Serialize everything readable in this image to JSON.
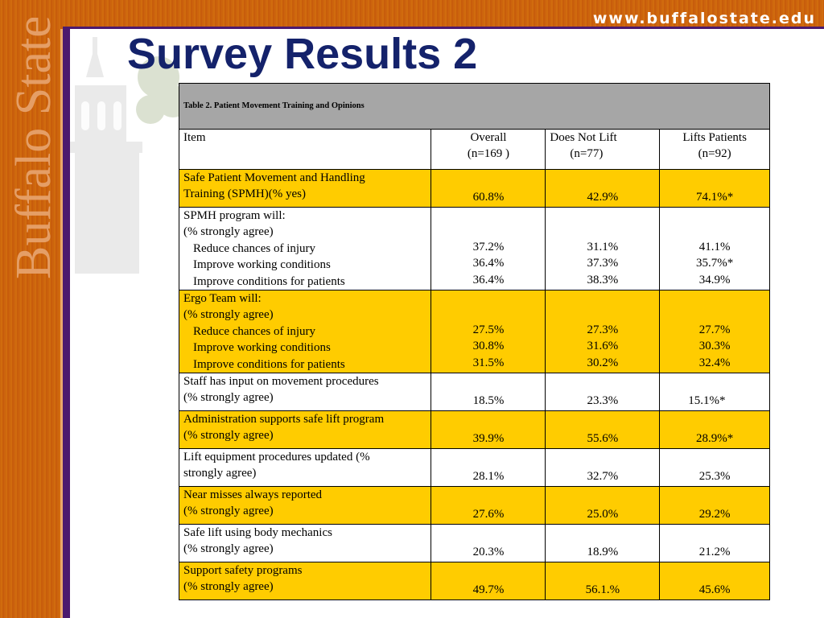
{
  "header": {
    "url": "www.buffalostate.edu",
    "brand_vertical": "Buffalo State"
  },
  "slide": {
    "title": "Survey Results 2"
  },
  "table": {
    "caption": "Table 2. Patient Movement Training and Opinions",
    "columns": {
      "item": "Item",
      "overall": [
        "Overall",
        "(n=169 )"
      ],
      "does_not_lift": [
        "Does Not Lift",
        "(n=77)"
      ],
      "lifts_patients": [
        "Lifts Patients",
        "(n=92)"
      ]
    },
    "rows": [
      {
        "lines": [
          "Safe Patient Movement and Handling",
          "Training (SPMH)(% yes)"
        ],
        "overall": [
          "60.8%"
        ],
        "does_not_lift": [
          "42.9%"
        ],
        "lifts_patients": [
          "74.1%*"
        ]
      },
      {
        "lines": [
          "SPMH program will:",
          "(% strongly agree)"
        ],
        "sub": [
          "Reduce chances of injury",
          "Improve working conditions",
          "Improve conditions for patients"
        ],
        "overall": [
          "37.2%",
          "36.4%",
          "36.4%"
        ],
        "does_not_lift": [
          "31.1%",
          "37.3%",
          "38.3%"
        ],
        "lifts_patients": [
          "41.1%",
          "35.7%*",
          "34.9%"
        ]
      },
      {
        "lines": [
          "Ergo Team will:",
          "(% strongly agree)"
        ],
        "sub": [
          "Reduce chances of injury",
          "Improve working conditions",
          "Improve conditions for patients"
        ],
        "overall": [
          "27.5%",
          "30.8%",
          "31.5%"
        ],
        "does_not_lift": [
          "27.3%",
          "31.6%",
          "30.2%"
        ],
        "lifts_patients": [
          "27.7%",
          "30.3%",
          "32.4%"
        ]
      },
      {
        "lines": [
          "Staff has input on movement procedures",
          "(% strongly agree)"
        ],
        "overall": [
          "18.5%"
        ],
        "does_not_lift": [
          "23.3%"
        ],
        "lifts_patients": [
          "15.1%*"
        ]
      },
      {
        "lines": [
          "Administration supports safe lift program",
          "(% strongly agree)"
        ],
        "overall": [
          "39.9%"
        ],
        "does_not_lift": [
          "55.6%"
        ],
        "lifts_patients": [
          "28.9%*"
        ]
      },
      {
        "lines": [
          "Lift equipment procedures updated (%",
          "strongly agree)"
        ],
        "overall": [
          "28.1%"
        ],
        "does_not_lift": [
          "32.7%"
        ],
        "lifts_patients": [
          "25.3%"
        ]
      },
      {
        "lines": [
          "Near misses always reported",
          "(% strongly agree)"
        ],
        "overall": [
          "27.6%"
        ],
        "does_not_lift": [
          "25.0%"
        ],
        "lifts_patients": [
          "29.2%"
        ]
      },
      {
        "lines": [
          "Safe lift  using body mechanics",
          "(% strongly agree)"
        ],
        "overall": [
          "20.3%"
        ],
        "does_not_lift": [
          "18.9%"
        ],
        "lifts_patients": [
          "21.2%"
        ]
      },
      {
        "lines": [
          "Support safety programs",
          "(% strongly agree)"
        ],
        "overall": [
          "49.7%"
        ],
        "does_not_lift": [
          "56.1.%"
        ],
        "lifts_patients": [
          "45.6%"
        ]
      }
    ]
  },
  "colors": {
    "title": "#14226b",
    "accent_orange": "#c8600c",
    "accent_purple": "#4b1a6e",
    "row_highlight": "#ffcc00",
    "caption_bg": "#a6a6a6"
  }
}
